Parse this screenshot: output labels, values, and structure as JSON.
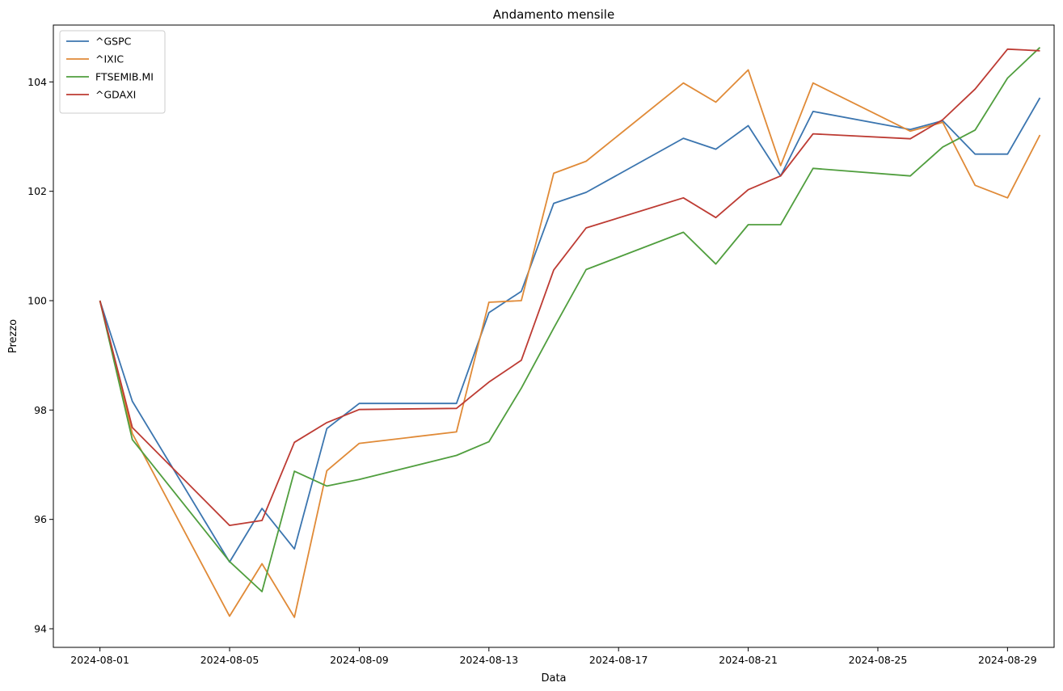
{
  "chart_data": {
    "type": "line",
    "title": "Andamento mensile",
    "xlabel": "Data",
    "ylabel": "Prezzo",
    "x": [
      "2024-08-01",
      "2024-08-02",
      "2024-08-05",
      "2024-08-06",
      "2024-08-07",
      "2024-08-08",
      "2024-08-09",
      "2024-08-12",
      "2024-08-13",
      "2024-08-14",
      "2024-08-15",
      "2024-08-16",
      "2024-08-19",
      "2024-08-20",
      "2024-08-21",
      "2024-08-22",
      "2024-08-23",
      "2024-08-26",
      "2024-08-27",
      "2024-08-28",
      "2024-08-29",
      "2024-08-30"
    ],
    "xlim": [
      "2024-07-30T13:30",
      "2024-08-30T10:30"
    ],
    "ylim": [
      93.66,
      105.04
    ],
    "x_ticks": [
      "2024-08-01",
      "2024-08-05",
      "2024-08-09",
      "2024-08-13",
      "2024-08-17",
      "2024-08-21",
      "2024-08-25",
      "2024-08-29"
    ],
    "y_ticks": [
      94,
      96,
      98,
      100,
      102,
      104
    ],
    "grid": false,
    "legend_position": "top-left",
    "series": [
      {
        "name": "^GSPC",
        "color": "#3b75af",
        "values": [
          100.0,
          98.16,
          95.22,
          96.2,
          95.46,
          97.66,
          98.12,
          98.12,
          99.78,
          100.17,
          101.78,
          101.98,
          102.97,
          102.77,
          103.2,
          102.28,
          103.46,
          103.13,
          103.29,
          102.68,
          102.68,
          103.71
        ]
      },
      {
        "name": "^IXIC",
        "color": "#e08a37",
        "values": [
          100.0,
          97.57,
          94.23,
          95.19,
          94.21,
          96.89,
          97.39,
          97.6,
          99.97,
          100.0,
          102.33,
          102.55,
          103.98,
          103.63,
          104.22,
          102.47,
          103.98,
          103.1,
          103.26,
          102.11,
          101.88,
          103.03
        ]
      },
      {
        "name": "FTSEMIB.MI",
        "color": "#509e3e",
        "values": [
          100.0,
          97.46,
          95.23,
          94.68,
          96.88,
          96.61,
          96.73,
          97.17,
          97.42,
          98.4,
          99.5,
          100.57,
          101.25,
          100.67,
          101.39,
          101.39,
          102.42,
          102.28,
          102.81,
          103.12,
          104.07,
          104.63
        ]
      },
      {
        "name": "^GDAXI",
        "color": "#bd3b33",
        "values": [
          100.0,
          97.68,
          95.89,
          95.98,
          97.41,
          97.77,
          98.01,
          98.03,
          98.51,
          98.91,
          100.56,
          101.33,
          101.88,
          101.52,
          102.03,
          102.28,
          103.05,
          102.96,
          103.31,
          103.87,
          104.6,
          104.57
        ]
      }
    ]
  }
}
